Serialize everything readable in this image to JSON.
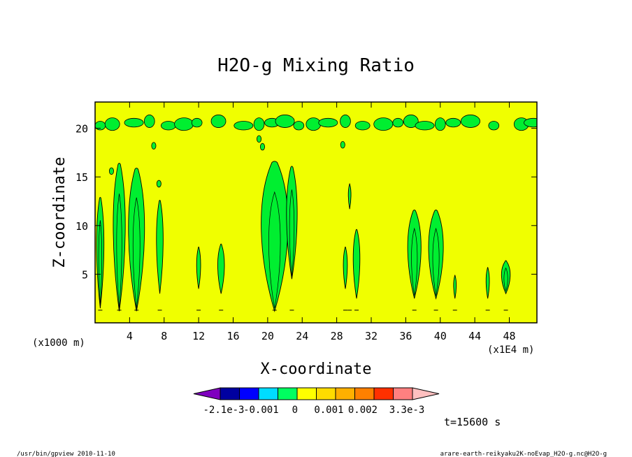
{
  "chart_data": {
    "type": "heatmap",
    "title": "H2O-g Mixing Ratio",
    "xlabel": "X-coordinate",
    "ylabel": "Z-coordinate",
    "x_unit_left": "(x1000 m)",
    "x_unit_right": "(x1E4 m)",
    "xlim": [
      0,
      51.2
    ],
    "ylim": [
      0,
      22.7
    ],
    "x_ticks": [
      4,
      8,
      12,
      16,
      20,
      24,
      28,
      32,
      36,
      40,
      44,
      48
    ],
    "x_tick_labels": [
      "4",
      "8",
      "12",
      "16",
      "20",
      "24",
      "28",
      "32",
      "36",
      "40",
      "44",
      "48"
    ],
    "y_ticks": [
      5,
      10,
      15,
      20
    ],
    "y_tick_labels": [
      "5",
      "10",
      "15",
      "20"
    ],
    "time_label": "t=15600 s",
    "colorbar": {
      "colors": [
        "#7f00bf",
        "#0000a0",
        "#0000ff",
        "#00dcff",
        "#00ff60",
        "#ffff00",
        "#ffdc00",
        "#ffb000",
        "#ff8000",
        "#ff3000",
        "#ff8080",
        "#ffc0c0"
      ],
      "labels": [
        "-2.1e-3",
        "-0.001",
        "0",
        "0.001",
        "0.002",
        "3.3e-3"
      ],
      "label_positions": [
        -0.0021,
        -0.001,
        0,
        0.001,
        0.002,
        0.0033
      ]
    },
    "colors": {
      "background_field": "#f0ff00",
      "anomaly": "#00ef30",
      "outline": "#000000"
    },
    "plumes": [
      {
        "x": 0.6,
        "base": 1.5,
        "top": 12.8,
        "width": 1.1
      },
      {
        "x": 2.8,
        "base": 1.2,
        "top": 16.3,
        "width": 1.8
      },
      {
        "x": 4.8,
        "base": 1.2,
        "top": 15.8,
        "width": 2.4
      },
      {
        "x": 7.5,
        "base": 3.0,
        "top": 12.5,
        "width": 1.0
      },
      {
        "x": 12.0,
        "base": 3.5,
        "top": 7.7,
        "width": 0.6
      },
      {
        "x": 14.6,
        "base": 3.0,
        "top": 8.0,
        "width": 1.0
      },
      {
        "x": 20.8,
        "base": 1.2,
        "top": 16.5,
        "width": 4.0
      },
      {
        "x": 22.8,
        "base": 4.5,
        "top": 16.0,
        "width": 1.6
      },
      {
        "x": 29.0,
        "base": 3.5,
        "top": 7.7,
        "width": 0.6
      },
      {
        "x": 30.3,
        "base": 2.5,
        "top": 9.5,
        "width": 1.0
      },
      {
        "x": 29.5,
        "base": 11.7,
        "top": 14.2,
        "width": 0.4
      },
      {
        "x": 37.0,
        "base": 2.5,
        "top": 11.5,
        "width": 2.0
      },
      {
        "x": 39.5,
        "base": 2.5,
        "top": 11.5,
        "width": 2.2
      },
      {
        "x": 41.7,
        "base": 2.5,
        "top": 4.8,
        "width": 0.4
      },
      {
        "x": 45.5,
        "base": 2.5,
        "top": 5.6,
        "width": 0.5
      },
      {
        "x": 47.6,
        "base": 3.0,
        "top": 6.3,
        "width": 1.3
      }
    ],
    "upper_layer": {
      "z": 20.5,
      "blobs_x": [
        0.6,
        2.0,
        4.5,
        6.3,
        8.5,
        10.3,
        11.8,
        14.3,
        17.2,
        19.0,
        20.5,
        22.0,
        23.6,
        25.3,
        27.0,
        29.0,
        31.0,
        33.4,
        35.1,
        36.6,
        38.2,
        40.0,
        41.5,
        43.5,
        46.2,
        49.4,
        50.8
      ]
    },
    "small_blobs": [
      {
        "x": 6.8,
        "z": 18.2
      },
      {
        "x": 19.0,
        "z": 18.9
      },
      {
        "x": 19.4,
        "z": 18.1
      },
      {
        "x": 28.7,
        "z": 18.3
      },
      {
        "x": 7.4,
        "z": 14.3
      },
      {
        "x": 1.9,
        "z": 15.6
      }
    ]
  },
  "footer": {
    "left": "/usr/bin/gpview   2010-11-10",
    "right": "arare-earth-reikyaku2K-noEvap_H2O-g.nc@H2O-g"
  }
}
